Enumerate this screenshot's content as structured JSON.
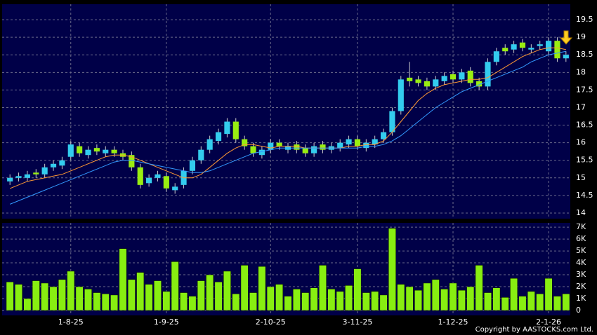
{
  "chart_data": [
    {
      "type": "candlestick",
      "ylim": [
        13.84,
        19.9
      ],
      "yticks": [
        14,
        14.5,
        15,
        15.5,
        16,
        16.5,
        17,
        17.5,
        18,
        18.5,
        19,
        19.5
      ],
      "grid": true,
      "up_color": "#33ccee",
      "down_color": "#99ee11",
      "series": [
        {
          "type": "candlestick",
          "open": [
            14.9,
            15.0,
            15.0,
            15.15,
            15.1,
            15.3,
            15.35,
            15.6,
            15.9,
            15.65,
            15.85,
            15.7,
            15.8,
            15.7,
            15.65,
            15.3,
            14.85,
            15.0,
            15.05,
            14.65,
            14.8,
            15.2,
            15.5,
            15.8,
            16.05,
            16.25,
            16.6,
            16.1,
            15.9,
            15.65,
            15.8,
            16.0,
            15.8,
            15.95,
            15.85,
            15.7,
            15.95,
            15.8,
            15.85,
            15.95,
            16.1,
            15.85,
            15.95,
            16.1,
            16.3,
            16.9,
            17.85,
            17.8,
            17.75,
            17.6,
            17.75,
            17.95,
            17.8,
            18.05,
            17.75,
            17.6,
            18.3,
            18.7,
            18.65,
            18.85,
            18.65,
            18.75,
            18.6,
            18.9,
            18.4
          ],
          "high": [
            15.1,
            15.15,
            15.2,
            15.25,
            15.4,
            15.5,
            15.6,
            16.05,
            16.0,
            15.9,
            15.95,
            15.9,
            15.9,
            15.8,
            15.75,
            15.4,
            15.1,
            15.2,
            15.15,
            14.85,
            15.3,
            15.6,
            15.9,
            16.2,
            16.4,
            16.7,
            16.7,
            16.2,
            16.0,
            15.9,
            16.1,
            16.1,
            16.0,
            16.05,
            15.95,
            16.0,
            16.05,
            16.0,
            16.1,
            16.2,
            16.2,
            16.1,
            16.2,
            16.4,
            17.0,
            17.9,
            18.3,
            17.9,
            17.85,
            17.9,
            18.0,
            18.05,
            18.1,
            18.15,
            17.85,
            18.4,
            18.7,
            18.8,
            18.9,
            18.95,
            18.8,
            18.9,
            19.0,
            19.0,
            18.6
          ],
          "low": [
            14.8,
            14.9,
            14.9,
            15.0,
            15.0,
            15.2,
            15.25,
            15.5,
            15.6,
            15.55,
            15.65,
            15.6,
            15.6,
            15.5,
            15.2,
            14.7,
            14.75,
            14.9,
            14.6,
            14.55,
            14.7,
            15.1,
            15.4,
            15.7,
            15.95,
            16.15,
            16.0,
            15.8,
            15.6,
            15.55,
            15.7,
            15.8,
            15.7,
            15.7,
            15.6,
            15.6,
            15.7,
            15.7,
            15.75,
            15.85,
            15.8,
            15.75,
            15.85,
            16.0,
            16.2,
            16.8,
            17.6,
            17.6,
            17.5,
            17.5,
            17.65,
            17.7,
            17.7,
            17.6,
            17.5,
            17.5,
            18.2,
            18.5,
            18.55,
            18.6,
            18.55,
            18.65,
            18.5,
            18.3,
            18.3
          ],
          "close": [
            15.0,
            15.05,
            15.1,
            15.1,
            15.3,
            15.4,
            15.5,
            15.95,
            15.7,
            15.8,
            15.75,
            15.8,
            15.7,
            15.6,
            15.3,
            14.8,
            15.0,
            15.1,
            14.7,
            14.75,
            15.2,
            15.5,
            15.8,
            16.1,
            16.3,
            16.6,
            16.1,
            15.9,
            15.7,
            15.8,
            16.0,
            15.9,
            15.9,
            15.8,
            15.7,
            15.9,
            15.8,
            15.9,
            16.0,
            16.1,
            15.9,
            16.0,
            16.1,
            16.3,
            16.9,
            17.8,
            17.75,
            17.7,
            17.6,
            17.8,
            17.9,
            17.8,
            18.0,
            17.7,
            17.6,
            18.3,
            18.6,
            18.6,
            18.8,
            18.7,
            18.7,
            18.8,
            18.9,
            18.4,
            18.5
          ]
        },
        {
          "type": "line",
          "color": "#ff9933",
          "values": [
            14.7,
            14.8,
            14.9,
            14.95,
            15.0,
            15.05,
            15.1,
            15.2,
            15.3,
            15.4,
            15.5,
            15.6,
            15.65,
            15.65,
            15.6,
            15.5,
            15.4,
            15.3,
            15.2,
            15.1,
            15.0,
            15.0,
            15.1,
            15.3,
            15.5,
            15.7,
            15.85,
            15.95,
            15.95,
            15.9,
            15.85,
            15.9,
            15.9,
            15.9,
            15.85,
            15.85,
            15.85,
            15.85,
            15.85,
            15.9,
            15.9,
            15.95,
            15.95,
            16.05,
            16.3,
            16.6,
            16.9,
            17.2,
            17.4,
            17.55,
            17.65,
            17.7,
            17.75,
            17.8,
            17.8,
            17.85,
            18.0,
            18.15,
            18.3,
            18.45,
            18.55,
            18.65,
            18.7,
            18.7,
            18.65
          ]
        },
        {
          "type": "line",
          "color": "#3399ff",
          "values": [
            14.25,
            14.35,
            14.45,
            14.55,
            14.65,
            14.75,
            14.85,
            14.95,
            15.05,
            15.15,
            15.25,
            15.35,
            15.45,
            15.5,
            15.5,
            15.45,
            15.4,
            15.35,
            15.3,
            15.25,
            15.2,
            15.15,
            15.15,
            15.2,
            15.3,
            15.4,
            15.5,
            15.6,
            15.7,
            15.75,
            15.8,
            15.85,
            15.85,
            15.85,
            15.85,
            15.85,
            15.85,
            15.85,
            15.85,
            15.85,
            15.85,
            15.9,
            15.9,
            15.95,
            16.05,
            16.2,
            16.4,
            16.6,
            16.8,
            17.0,
            17.15,
            17.3,
            17.45,
            17.55,
            17.65,
            17.75,
            17.85,
            17.95,
            18.05,
            18.15,
            18.3,
            18.4,
            18.5,
            18.55,
            18.6
          ]
        }
      ]
    },
    {
      "type": "bar",
      "categories": [
        null,
        null,
        null,
        null,
        null,
        null,
        null,
        "1-8-25",
        null,
        null,
        null,
        null,
        null,
        null,
        null,
        null,
        null,
        null,
        "1-9-25",
        null,
        null,
        null,
        null,
        null,
        null,
        null,
        null,
        null,
        null,
        null,
        "2-10-25",
        null,
        null,
        null,
        null,
        null,
        null,
        null,
        null,
        null,
        "3-11-25",
        null,
        null,
        null,
        null,
        null,
        null,
        null,
        null,
        null,
        null,
        "1-12-25",
        null,
        null,
        null,
        null,
        null,
        null,
        null,
        null,
        null,
        null,
        "2-1-26",
        null,
        null
      ],
      "values": [
        2400,
        2200,
        1000,
        2500,
        2300,
        2000,
        2600,
        3300,
        2000,
        1800,
        1500,
        1400,
        1300,
        5200,
        2600,
        3200,
        2200,
        2500,
        1600,
        4100,
        1500,
        1200,
        2500,
        3000,
        2400,
        3300,
        1400,
        3800,
        1500,
        3700,
        2000,
        2200,
        1200,
        1800,
        1500,
        1900,
        3800,
        1800,
        1600,
        2100,
        3500,
        1500,
        1600,
        1300,
        6900,
        2200,
        2000,
        1700,
        2300,
        2600,
        1800,
        2300,
        1700,
        2000,
        3800,
        1500,
        1900,
        1100,
        2700,
        1200,
        1600,
        1400,
        2700,
        1200,
        1400
      ],
      "color": "#88ee11",
      "ylim": [
        0,
        7300
      ],
      "yticks": [
        0,
        {
          "value": 1000,
          "label": "1K"
        },
        {
          "value": 2000,
          "label": "2K"
        },
        {
          "value": 3000,
          "label": "3K"
        },
        {
          "value": 4000,
          "label": "4K"
        },
        {
          "value": 5000,
          "label": "5K"
        },
        {
          "value": 6000,
          "label": "6K"
        },
        {
          "value": 7000,
          "label": "7K"
        }
      ],
      "grid": true
    }
  ],
  "footer": {
    "copyright": "Copyright by AASTOCKS.com Ltd."
  }
}
